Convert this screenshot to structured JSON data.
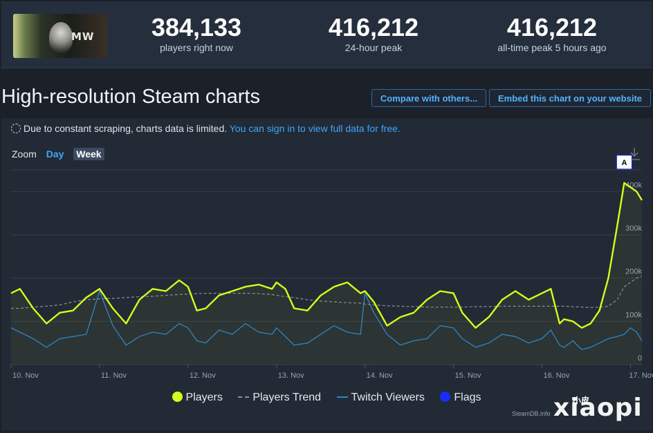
{
  "stats": [
    {
      "value": "384,133",
      "label": "players right now"
    },
    {
      "value": "416,212",
      "label": "24-hour peak"
    },
    {
      "value": "416,212",
      "label": "all-time peak 5 hours ago"
    }
  ],
  "thumbnail": {
    "text": "MW"
  },
  "title": "High-resolution Steam charts",
  "buttons": {
    "compare": "Compare with others...",
    "embed": "Embed this chart on your website"
  },
  "notice": {
    "text": "Due to constant scraping, charts data is limited.",
    "link": "You can sign in to view full data for free."
  },
  "zoom": {
    "label": "Zoom",
    "options": [
      "Day",
      "Week"
    ],
    "active": "Week"
  },
  "legend": {
    "players": "Players",
    "trend": "Players Trend",
    "twitch": "Twitch Viewers",
    "flags": "Flags"
  },
  "credit": "SteamDB.info",
  "watermark": {
    "big": "xiaopi",
    "small": "小皮"
  },
  "colors": {
    "players": "#d7ff1c",
    "trend": "#8a919b",
    "twitch": "#2f86c6",
    "flags": "#1b2cff"
  },
  "chart_data": {
    "type": "line",
    "x_tick_labels": [
      "10. Nov",
      "11. Nov",
      "12. Nov",
      "13. Nov",
      "14. Nov",
      "15. Nov",
      "16. Nov",
      "17. Nov"
    ],
    "y_tick_labels": [
      "0",
      "100k",
      "200k",
      "300k",
      "400k"
    ],
    "ylim": [
      0,
      450000
    ],
    "flag_label": "A",
    "x": [
      0.0,
      0.1,
      0.25,
      0.4,
      0.55,
      0.7,
      0.85,
      1.0,
      1.15,
      1.3,
      1.45,
      1.6,
      1.75,
      1.9,
      2.0,
      2.1,
      2.2,
      2.35,
      2.5,
      2.65,
      2.8,
      2.95,
      3.0,
      3.1,
      3.2,
      3.35,
      3.5,
      3.65,
      3.8,
      3.95,
      4.0,
      4.1,
      4.25,
      4.4,
      4.55,
      4.7,
      4.85,
      5.0,
      5.1,
      5.25,
      5.4,
      5.55,
      5.7,
      5.85,
      6.0,
      6.1,
      6.2,
      6.25,
      6.35,
      6.45,
      6.55,
      6.65,
      6.75,
      6.85,
      6.93,
      7.0,
      7.07,
      7.13
    ],
    "series": [
      {
        "name": "Players",
        "values": [
          165000,
          175000,
          130000,
          95000,
          120000,
          125000,
          155000,
          175000,
          130000,
          95000,
          150000,
          175000,
          170000,
          195000,
          180000,
          125000,
          130000,
          160000,
          170000,
          180000,
          185000,
          175000,
          190000,
          175000,
          130000,
          125000,
          160000,
          180000,
          190000,
          165000,
          170000,
          145000,
          90000,
          110000,
          120000,
          150000,
          170000,
          165000,
          120000,
          85000,
          110000,
          150000,
          170000,
          150000,
          165000,
          175000,
          95000,
          105000,
          100000,
          85000,
          95000,
          125000,
          200000,
          320000,
          420000,
          410000,
          400000,
          380000
        ]
      },
      {
        "name": "Players Trend",
        "values": [
          130000,
          130000,
          133000,
          135000,
          138000,
          145000,
          150000,
          152000,
          153000,
          155000,
          157000,
          158000,
          160000,
          162000,
          163000,
          164000,
          165000,
          165000,
          165000,
          165000,
          164000,
          162000,
          160000,
          157000,
          155000,
          150000,
          147000,
          145000,
          143000,
          142000,
          140000,
          138000,
          136000,
          135000,
          134000,
          133000,
          133000,
          133000,
          133000,
          134000,
          134000,
          135000,
          135000,
          135000,
          135000,
          135000,
          135000,
          135000,
          134000,
          133000,
          132000,
          133000,
          135000,
          150000,
          180000,
          190000,
          200000,
          205000
        ]
      },
      {
        "name": "Twitch Viewers",
        "values": [
          85000,
          75000,
          60000,
          40000,
          60000,
          65000,
          70000,
          170000,
          90000,
          45000,
          65000,
          75000,
          70000,
          95000,
          85000,
          55000,
          50000,
          80000,
          70000,
          95000,
          75000,
          70000,
          85000,
          65000,
          45000,
          50000,
          70000,
          90000,
          75000,
          70000,
          165000,
          120000,
          70000,
          45000,
          55000,
          60000,
          90000,
          85000,
          60000,
          40000,
          50000,
          70000,
          65000,
          50000,
          60000,
          80000,
          45000,
          40000,
          55000,
          35000,
          40000,
          50000,
          60000,
          65000,
          70000,
          85000,
          75000,
          55000
        ]
      }
    ]
  }
}
